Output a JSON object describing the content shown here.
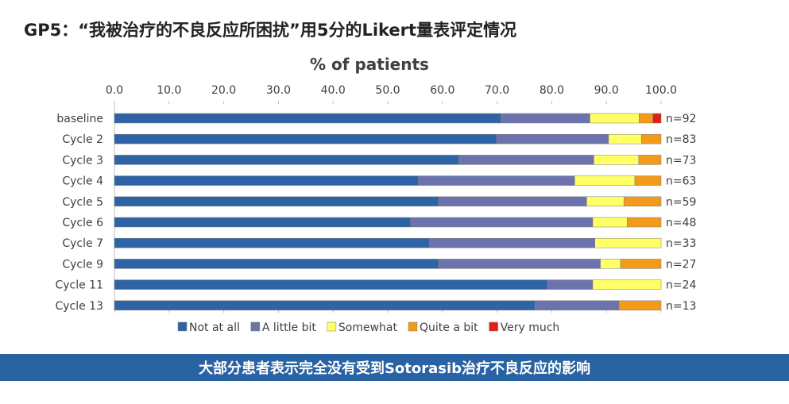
{
  "title": "GP5：“我被治疗的不良反应所困扰”用5分的Likert量表评定情况",
  "banner": {
    "text": "大部分患者表示完全没有受到Sotorasib治疗不良反应的影响"
  },
  "colors": {
    "Not at all": "#2e63a5",
    "A little bit": "#6b72ac",
    "Somewhat": "#ffff66",
    "Quite a bit": "#f29a1a",
    "Very much": "#e02010",
    "banner": "#2a63a4"
  },
  "chart_data": {
    "type": "bar",
    "orientation": "horizontal",
    "stacked": true,
    "title": "% of patients",
    "xlim": [
      0,
      100
    ],
    "x_ticks": [
      "0.0",
      "10.0",
      "20.0",
      "30.0",
      "40.0",
      "50.0",
      "60.0",
      "70.0",
      "80.0",
      "90.0",
      "100.0"
    ],
    "legend_position": "bottom",
    "categories": [
      "baseline",
      "Cycle 2",
      "Cycle 3",
      "Cycle 4",
      "Cycle 5",
      "Cycle 6",
      "Cycle 7",
      "Cycle 9",
      "Cycle 11",
      "Cycle 13"
    ],
    "n_labels": [
      "n=92",
      "n=83",
      "n=73",
      "n=63",
      "n=59",
      "n=48",
      "n=33",
      "n=27",
      "n=24",
      "n=13"
    ],
    "series": [
      {
        "name": "Not at all",
        "values": [
          70.7,
          69.9,
          63.0,
          55.6,
          59.3,
          54.2,
          57.6,
          59.3,
          79.2,
          76.9
        ]
      },
      {
        "name": "A little bit",
        "values": [
          16.3,
          20.5,
          24.7,
          28.6,
          27.1,
          33.3,
          30.3,
          29.6,
          8.3,
          15.4
        ]
      },
      {
        "name": "Somewhat",
        "values": [
          9.0,
          6.0,
          8.2,
          11.0,
          6.8,
          6.3,
          12.1,
          3.7,
          12.5,
          0.0
        ]
      },
      {
        "name": "Quite a bit",
        "values": [
          2.5,
          3.6,
          4.1,
          4.8,
          6.8,
          6.2,
          0.0,
          7.4,
          0.0,
          7.7
        ]
      },
      {
        "name": "Very much",
        "values": [
          1.5,
          0.0,
          0.0,
          0.0,
          0.0,
          0.0,
          0.0,
          0.0,
          0.0,
          0.0
        ]
      }
    ]
  }
}
